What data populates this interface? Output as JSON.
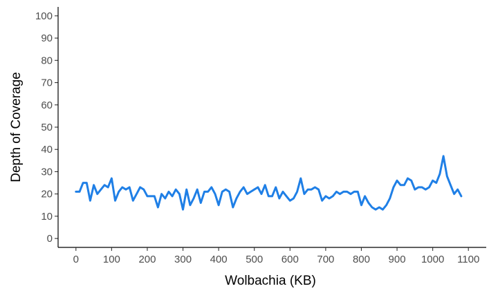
{
  "chart_data": {
    "type": "line",
    "title": "",
    "xlabel": "Wolbachia (KB)",
    "ylabel": "Depth of Coverage",
    "xlim": [
      -50,
      1150
    ],
    "ylim": [
      -4,
      104
    ],
    "xticks": [
      0,
      100,
      200,
      300,
      400,
      500,
      600,
      700,
      800,
      900,
      1000,
      1100
    ],
    "yticks": [
      0,
      10,
      20,
      30,
      40,
      50,
      60,
      70,
      80,
      90,
      100
    ],
    "grid": false,
    "legend": "none",
    "line_color": "#1f7fe6",
    "series": [
      {
        "x": [
          0,
          10,
          20,
          30,
          40,
          50,
          60,
          70,
          80,
          90,
          100,
          110,
          120,
          130,
          140,
          150,
          160,
          170,
          180,
          190,
          200,
          210,
          220,
          230,
          240,
          250,
          260,
          270,
          280,
          290,
          300,
          310,
          320,
          330,
          340,
          350,
          360,
          370,
          380,
          390,
          400,
          410,
          420,
          430,
          440,
          450,
          460,
          470,
          480,
          490,
          500,
          510,
          520,
          530,
          540,
          550,
          560,
          570,
          580,
          590,
          600,
          610,
          620,
          630,
          640,
          650,
          660,
          670,
          680,
          690,
          700,
          710,
          720,
          730,
          740,
          750,
          760,
          770,
          780,
          790,
          800,
          810,
          820,
          830,
          840,
          850,
          860,
          870,
          880,
          890,
          900,
          910,
          920,
          930,
          940,
          950,
          960,
          970,
          980,
          990,
          1000,
          1010,
          1020,
          1030,
          1040,
          1050,
          1060,
          1070,
          1080
        ],
        "y": [
          21,
          21,
          25,
          25,
          17,
          24,
          20,
          22,
          24,
          23,
          27,
          17,
          21,
          23,
          22,
          23,
          17,
          20,
          23,
          22,
          19,
          19,
          19,
          14,
          20,
          18,
          21,
          19,
          22,
          20,
          13,
          22,
          15,
          18,
          22,
          16,
          21,
          21,
          23,
          20,
          15,
          21,
          22,
          21,
          14,
          18,
          21,
          23,
          20,
          21,
          22,
          23,
          20,
          24,
          19,
          19,
          23,
          18,
          21,
          19,
          17,
          18,
          21,
          27,
          20,
          22,
          22,
          23,
          22,
          17,
          19,
          18,
          19,
          21,
          20,
          21,
          21,
          20,
          21,
          21,
          15,
          19,
          16,
          14,
          13,
          14,
          13,
          15,
          18,
          23,
          26,
          24,
          24,
          27,
          26,
          22,
          23,
          23,
          22,
          23,
          26,
          25,
          29,
          37,
          28,
          24,
          20,
          22,
          19
        ]
      }
    ]
  }
}
